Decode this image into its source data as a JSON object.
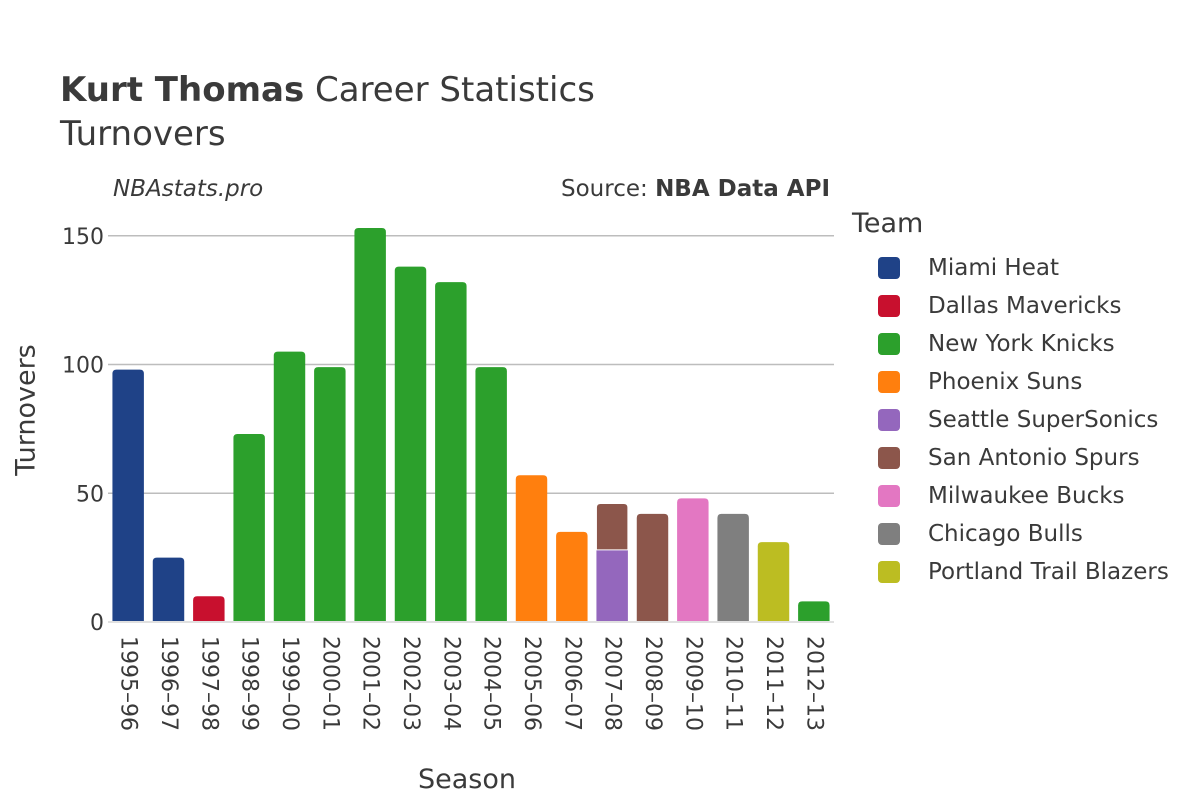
{
  "header": {
    "player": "Kurt Thomas",
    "title_rest": "Career Statistics",
    "subtitle": "Turnovers",
    "watermark": "NBAstats.pro",
    "source_prefix": "Source: ",
    "source_name": "NBA Data API"
  },
  "legend": {
    "title": "Team"
  },
  "colors": {
    "Miami Heat": "#1f4287",
    "Dallas Mavericks": "#c8102e",
    "New York Knicks": "#2ca02c",
    "Phoenix Suns": "#ff7f0e",
    "Seattle SuperSonics": "#9467bd",
    "San Antonio Spurs": "#8c564b",
    "Milwaukee Bucks": "#e377c2",
    "Chicago Bulls": "#7f7f7f",
    "Portland Trail Blazers": "#bcbd22"
  },
  "chart_data": {
    "type": "bar",
    "stacked": true,
    "xlabel": "Season",
    "ylabel": "Turnovers",
    "ylim": [
      0,
      160
    ],
    "yticks": [
      0,
      50,
      100,
      150
    ],
    "grid": true,
    "legend_position": "right",
    "categories": [
      "1995–96",
      "1996–97",
      "1997–98",
      "1998–99",
      "1999–00",
      "2000–01",
      "2001–02",
      "2002–03",
      "2003–04",
      "2004–05",
      "2005–06",
      "2006–07",
      "2007–08",
      "2008–09",
      "2009–10",
      "2010–11",
      "2011–12",
      "2012–13"
    ],
    "series": [
      {
        "name": "Miami Heat",
        "values": [
          98,
          25,
          0,
          0,
          0,
          0,
          0,
          0,
          0,
          0,
          0,
          0,
          0,
          0,
          0,
          0,
          0,
          0
        ]
      },
      {
        "name": "Dallas Mavericks",
        "values": [
          0,
          0,
          10,
          0,
          0,
          0,
          0,
          0,
          0,
          0,
          0,
          0,
          0,
          0,
          0,
          0,
          0,
          0
        ]
      },
      {
        "name": "New York Knicks",
        "values": [
          0,
          0,
          0,
          73,
          105,
          99,
          153,
          138,
          132,
          99,
          0,
          0,
          0,
          0,
          0,
          0,
          0,
          8
        ]
      },
      {
        "name": "Phoenix Suns",
        "values": [
          0,
          0,
          0,
          0,
          0,
          0,
          0,
          0,
          0,
          0,
          57,
          35,
          0,
          0,
          0,
          0,
          0,
          0
        ]
      },
      {
        "name": "Seattle SuperSonics",
        "values": [
          0,
          0,
          0,
          0,
          0,
          0,
          0,
          0,
          0,
          0,
          0,
          0,
          28,
          0,
          0,
          0,
          0,
          0
        ]
      },
      {
        "name": "San Antonio Spurs",
        "values": [
          0,
          0,
          0,
          0,
          0,
          0,
          0,
          0,
          0,
          0,
          0,
          0,
          18,
          42,
          0,
          0,
          0,
          0
        ]
      },
      {
        "name": "Milwaukee Bucks",
        "values": [
          0,
          0,
          0,
          0,
          0,
          0,
          0,
          0,
          0,
          0,
          0,
          0,
          0,
          0,
          48,
          0,
          0,
          0
        ]
      },
      {
        "name": "Chicago Bulls",
        "values": [
          0,
          0,
          0,
          0,
          0,
          0,
          0,
          0,
          0,
          0,
          0,
          0,
          0,
          0,
          0,
          42,
          0,
          0
        ]
      },
      {
        "name": "Portland Trail Blazers",
        "values": [
          0,
          0,
          0,
          0,
          0,
          0,
          0,
          0,
          0,
          0,
          0,
          0,
          0,
          0,
          0,
          0,
          31,
          0
        ]
      }
    ]
  }
}
